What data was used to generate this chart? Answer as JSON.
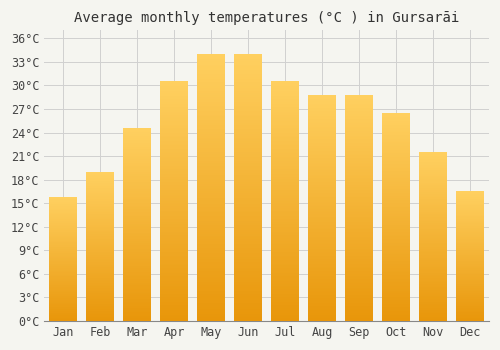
{
  "title": "Average monthly temperatures (°C ) in Gursarāi",
  "months": [
    "Jan",
    "Feb",
    "Mar",
    "Apr",
    "May",
    "Jun",
    "Jul",
    "Aug",
    "Sep",
    "Oct",
    "Nov",
    "Dec"
  ],
  "values": [
    15.8,
    19.0,
    24.5,
    30.5,
    34.0,
    34.0,
    30.5,
    28.8,
    28.8,
    26.5,
    21.5,
    16.5
  ],
  "bar_color_bottom": "#E8960A",
  "bar_color_top": "#FFD060",
  "ylim": [
    0,
    37
  ],
  "yticks": [
    0,
    3,
    6,
    9,
    12,
    15,
    18,
    21,
    24,
    27,
    30,
    33,
    36
  ],
  "ytick_labels": [
    "0°C",
    "3°C",
    "6°C",
    "9°C",
    "12°C",
    "15°C",
    "18°C",
    "21°C",
    "24°C",
    "27°C",
    "30°C",
    "33°C",
    "36°C"
  ],
  "background_color": "#f5f5f0",
  "plot_bg_color": "#f5f5f0",
  "grid_color": "#d0d0d0",
  "title_fontsize": 10,
  "tick_fontsize": 8.5,
  "bar_width": 0.75,
  "spine_color": "#888888"
}
